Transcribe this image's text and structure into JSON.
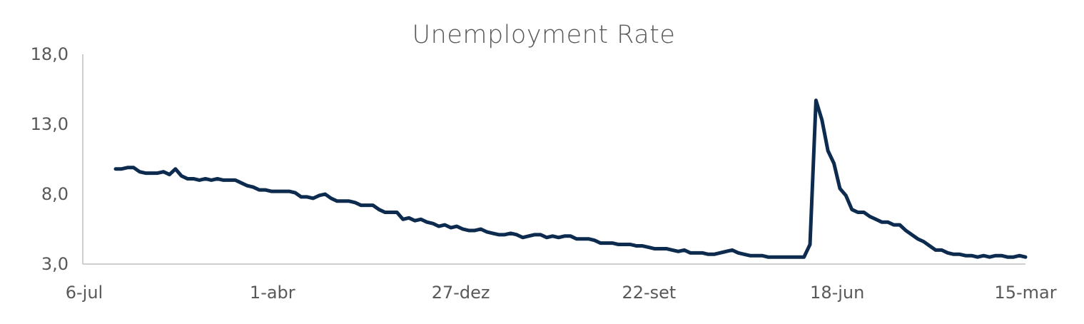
{
  "chart_data": {
    "type": "line",
    "title": "Unemployment Rate",
    "xlabel": "",
    "ylabel": "",
    "ylim": [
      3.0,
      18.0
    ],
    "y_ticks": [
      "3,0",
      "8,0",
      "13,0",
      "18,0"
    ],
    "y_tick_values": [
      3.0,
      8.0,
      13.0,
      18.0
    ],
    "x_ticks": [
      "6-jul",
      "1-abr",
      "27-dez",
      "22-set",
      "18-jun",
      "15-mar"
    ],
    "grid": false,
    "legend": "none",
    "line_color": "#0d2b4e",
    "series": [
      {
        "values": [
          9.8,
          9.8,
          9.9,
          9.9,
          9.6,
          9.5,
          9.5,
          9.5,
          9.6,
          9.4,
          9.8,
          9.3,
          9.1,
          9.1,
          9.0,
          9.1,
          9.0,
          9.1,
          9.0,
          9.0,
          9.0,
          8.8,
          8.6,
          8.5,
          8.3,
          8.3,
          8.2,
          8.2,
          8.2,
          8.2,
          8.1,
          7.8,
          7.8,
          7.7,
          7.9,
          8.0,
          7.7,
          7.5,
          7.5,
          7.5,
          7.4,
          7.2,
          7.2,
          7.2,
          6.9,
          6.7,
          6.7,
          6.7,
          6.2,
          6.3,
          6.1,
          6.2,
          6.0,
          5.9,
          5.7,
          5.8,
          5.6,
          5.7,
          5.5,
          5.4,
          5.4,
          5.5,
          5.3,
          5.2,
          5.1,
          5.1,
          5.2,
          5.1,
          4.9,
          5.0,
          5.1,
          5.1,
          4.9,
          5.0,
          4.9,
          5.0,
          5.0,
          4.8,
          4.8,
          4.8,
          4.7,
          4.5,
          4.5,
          4.5,
          4.4,
          4.4,
          4.4,
          4.3,
          4.3,
          4.2,
          4.1,
          4.1,
          4.1,
          4.0,
          3.9,
          4.0,
          3.8,
          3.8,
          3.8,
          3.7,
          3.7,
          3.8,
          3.9,
          4.0,
          3.8,
          3.7,
          3.6,
          3.6,
          3.6,
          3.5,
          3.5,
          3.5,
          3.5,
          3.5,
          3.5,
          3.5,
          4.4,
          14.7,
          13.3,
          11.1,
          10.2,
          8.4,
          7.9,
          6.9,
          6.7,
          6.7,
          6.4,
          6.2,
          6.0,
          6.0,
          5.8,
          5.8,
          5.4,
          5.1,
          4.8,
          4.6,
          4.3,
          4.0,
          4.0,
          3.8,
          3.7,
          3.7,
          3.6,
          3.6,
          3.5,
          3.6,
          3.5,
          3.6,
          3.6,
          3.5,
          3.5,
          3.6,
          3.5
        ]
      }
    ]
  }
}
